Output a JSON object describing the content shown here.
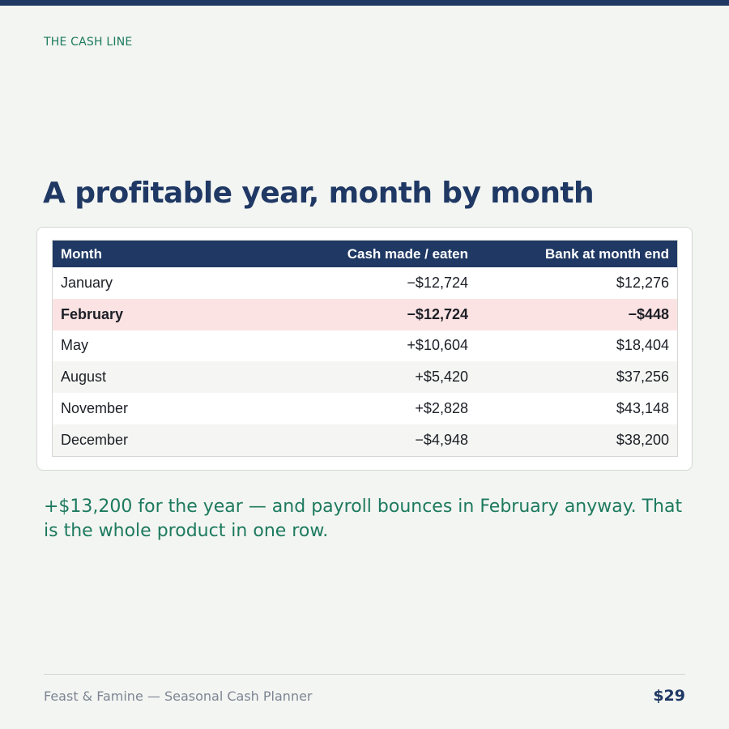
{
  "kicker": "THE CASH LINE",
  "headline": "A profitable year, month by month",
  "table": {
    "headers": {
      "month": "Month",
      "cash": "Cash made / eaten",
      "bank": "Bank at month end"
    },
    "rows": [
      {
        "month": "January",
        "cash": "−$12,724",
        "bank": "$12,276"
      },
      {
        "month": "February",
        "cash": "−$12,724",
        "bank": "−$448",
        "highlighted": true
      },
      {
        "month": "May",
        "cash": "+$10,604",
        "bank": "$18,404"
      },
      {
        "month": "August",
        "cash": "+$5,420",
        "bank": "$37,256"
      },
      {
        "month": "November",
        "cash": "+$2,828",
        "bank": "$43,148"
      },
      {
        "month": "December",
        "cash": "−$4,948",
        "bank": "$38,200"
      }
    ]
  },
  "takeaway": "+$13,200 for the year — and payroll bounces in February anyway. That is the whole product in one row.",
  "footer": {
    "product": "Feast & Famine — Seasonal Cash Planner",
    "price": "$29"
  },
  "colors": {
    "navy": "#1f3864",
    "green": "#1d7a5f",
    "highlight_row": "#fce3e3",
    "background": "#f3f5f2"
  }
}
